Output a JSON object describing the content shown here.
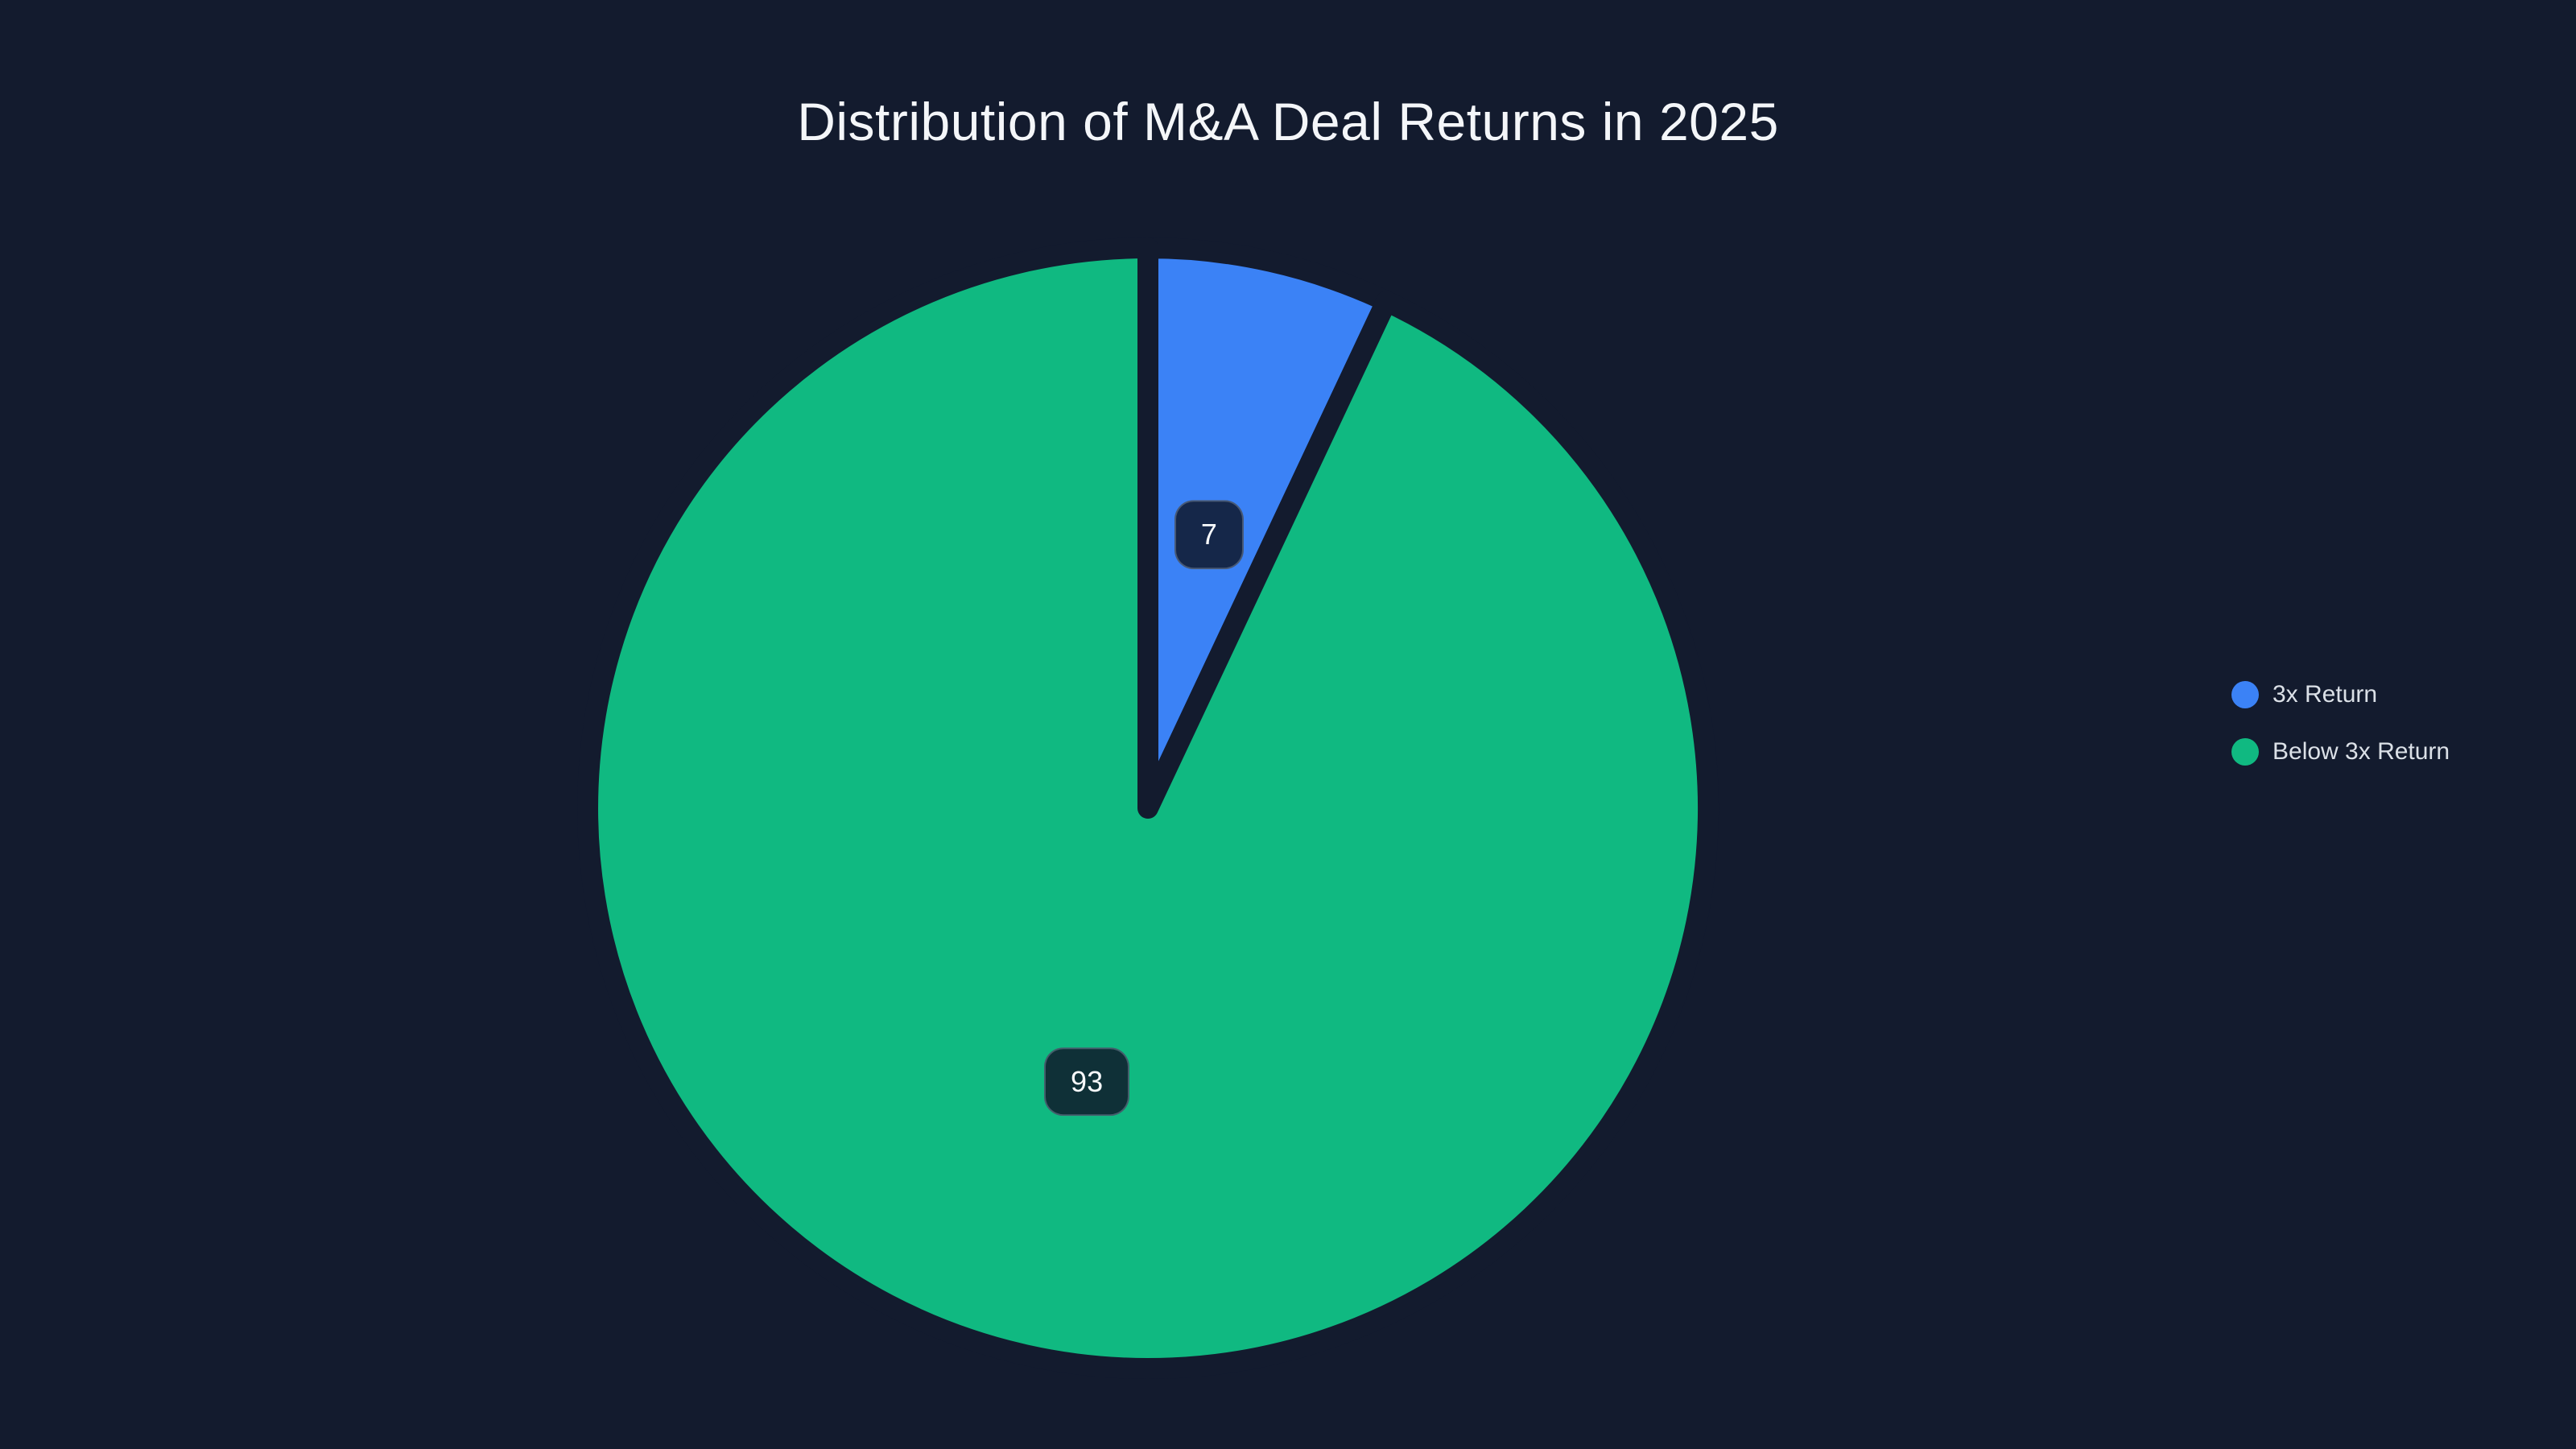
{
  "page": {
    "background_color": "#131b2e"
  },
  "chart_data": {
    "type": "pie",
    "title": "Distribution of M&A Deal Returns in 2025",
    "labels": [
      "3x Return",
      "Below 3x Return"
    ],
    "values": [
      7,
      93
    ],
    "colors": [
      "#3b82f6",
      "#10b981"
    ],
    "data_labels": [
      "7",
      "93"
    ],
    "legend_position": "right",
    "start_angle_deg": 0,
    "direction": "clockwise",
    "slice_gap_color": "#131b2e",
    "slice_gap_width": 26,
    "badge_background": "rgba(15, 23, 42, 0.85)",
    "badge_border": "rgba(148, 163, 184, 0.4)",
    "badge_text_color": "#f8fafc",
    "title_color": "#f4f6f9",
    "legend_text_color": "#dbe0e7"
  }
}
